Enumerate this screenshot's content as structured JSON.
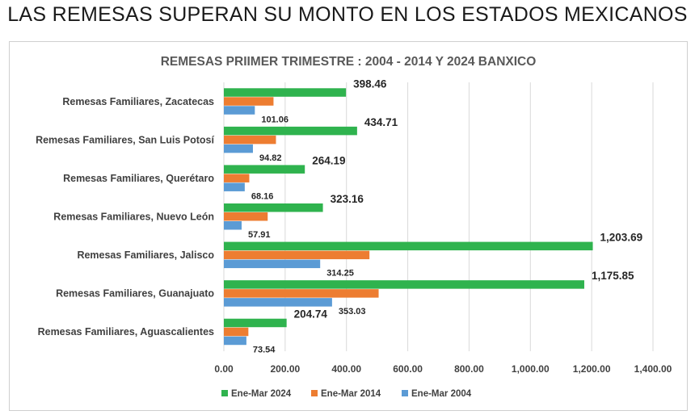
{
  "page": {
    "title": "LAS REMESAS SUPERAN SU MONTO EN LOS ESTADOS MEXICANOS"
  },
  "chart_data": {
    "type": "bar",
    "orientation": "horizontal",
    "title": "REMESAS PRIIMER TRIMESTRE : 2004 - 2014 Y 2024 BANXICO",
    "xlabel": "",
    "ylabel": "",
    "categories": [
      "Remesas Familiares, Zacatecas",
      "Remesas Familiares, San Luis Potosí",
      "Remesas Familiares, Querétaro",
      "Remesas Familiares, Nuevo León",
      "Remesas Familiares, Jalisco",
      "Remesas Familiares, Guanajuato",
      "Remesas Familiares, Aguascalientes"
    ],
    "series": [
      {
        "name": "Ene-Mar 2024",
        "color": "#2fb34e",
        "values": [
          398.46,
          434.71,
          264.19,
          323.16,
          1203.69,
          1175.85,
          204.74
        ],
        "labels": [
          "398.46",
          "434.71",
          "264.19",
          "323.16",
          "1,203.69",
          "1,175.85",
          "204.74"
        ]
      },
      {
        "name": "Ene-Mar 2014",
        "color": "#ed7d31",
        "values": [
          162,
          170,
          83,
          143,
          475,
          505,
          80
        ],
        "labels": null
      },
      {
        "name": "Ene-Mar 2004",
        "color": "#5b9bd5",
        "values": [
          101.06,
          94.82,
          68.16,
          57.91,
          314.25,
          353.03,
          73.54
        ],
        "labels": [
          "101.06",
          "94.82",
          "68.16",
          "57.91",
          "314.25",
          "353.03",
          "73.54"
        ]
      }
    ],
    "xlim": [
      0,
      1400
    ],
    "xticks": [
      "0.00",
      "200.00",
      "400.00",
      "600.00",
      "800.00",
      "1,000.00",
      "1,200.00",
      "1,400.00"
    ],
    "xtick_values": [
      0,
      200,
      400,
      600,
      800,
      1000,
      1200,
      1400
    ],
    "grid": true,
    "legend": "bottom"
  }
}
